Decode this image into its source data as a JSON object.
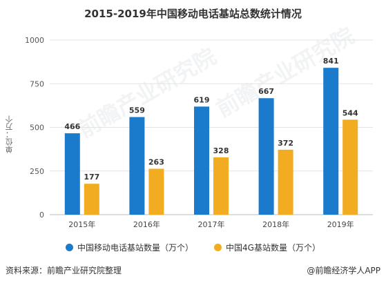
{
  "title": "2015-2019年中国移动电话基站总数统计情况",
  "source": "资料来源：前瞻产业研究院整理",
  "brand": "@前瞻经济学人APP",
  "watermark": "前瞻产业研究院",
  "colors": {
    "series1": "#1a7acb",
    "series2": "#f2ac22",
    "grid": "#e3e3e3",
    "axis": "#bbbbbb"
  },
  "chart_data": {
    "type": "bar",
    "title": "2015-2019年中国移动电话基站总数统计情况",
    "ylabel": "单位：万个",
    "ylim": [
      0,
      1000
    ],
    "yticks": [
      0,
      250,
      500,
      750,
      1000
    ],
    "categories": [
      "2015年",
      "2016年",
      "2017年",
      "2018年",
      "2019年"
    ],
    "series": [
      {
        "name": "中国移动电话基站数量（万个）",
        "values": [
          466,
          559,
          619,
          667,
          841
        ]
      },
      {
        "name": "中国4G基站数量（万个）",
        "values": [
          177,
          263,
          328,
          372,
          544
        ]
      }
    ],
    "grid": true,
    "legend_position": "bottom"
  }
}
